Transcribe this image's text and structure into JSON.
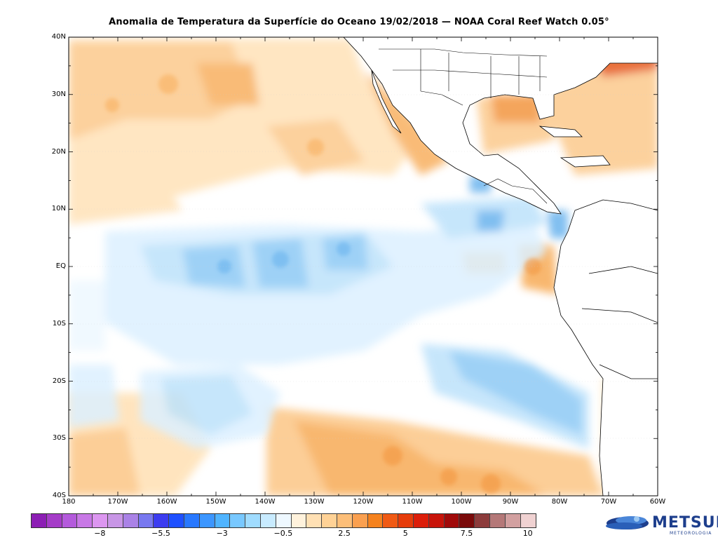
{
  "title": "Anomalia de Temperatura da Superfície do Oceano 19/02/2018 — NOAA Coral Reef Watch 0.05°",
  "map": {
    "lat_labels": [
      "40N",
      "30N",
      "20N",
      "10N",
      "EQ",
      "10S",
      "20S",
      "30S",
      "40S"
    ],
    "lon_labels": [
      "180",
      "170W",
      "160W",
      "150W",
      "140W",
      "130W",
      "120W",
      "110W",
      "100W",
      "90W",
      "80W",
      "70W",
      "60W"
    ],
    "lat_range": [
      -40,
      40
    ],
    "lon_range": [
      -180,
      -60
    ]
  },
  "colorbar": {
    "colors": [
      "#8c1eb4",
      "#a53cc8",
      "#b45adc",
      "#c878e6",
      "#dc96f0",
      "#c896e6",
      "#aa82e6",
      "#7878f0",
      "#3c3cf0",
      "#1e50ff",
      "#2878ff",
      "#3c96ff",
      "#50b4ff",
      "#78c8ff",
      "#a0dcff",
      "#c8ebff",
      "#eef8ff",
      "#fff2dc",
      "#ffe0b4",
      "#ffd296",
      "#fcbe78",
      "#faa050",
      "#f5821e",
      "#f05a14",
      "#e63c0a",
      "#dc1e0a",
      "#c8140a",
      "#a00a0a",
      "#7a0a0a",
      "#8c3c3c",
      "#b47878",
      "#d2a0a0",
      "#f0d2d2"
    ],
    "tick_labels": [
      "−8",
      "−5.5",
      "−3",
      "−0.5",
      "2.5",
      "5",
      "7.5",
      "10"
    ]
  },
  "logo": {
    "name": "METSUL",
    "subtitle": "METEOROLOGIA",
    "color": "#1d3e8c"
  }
}
